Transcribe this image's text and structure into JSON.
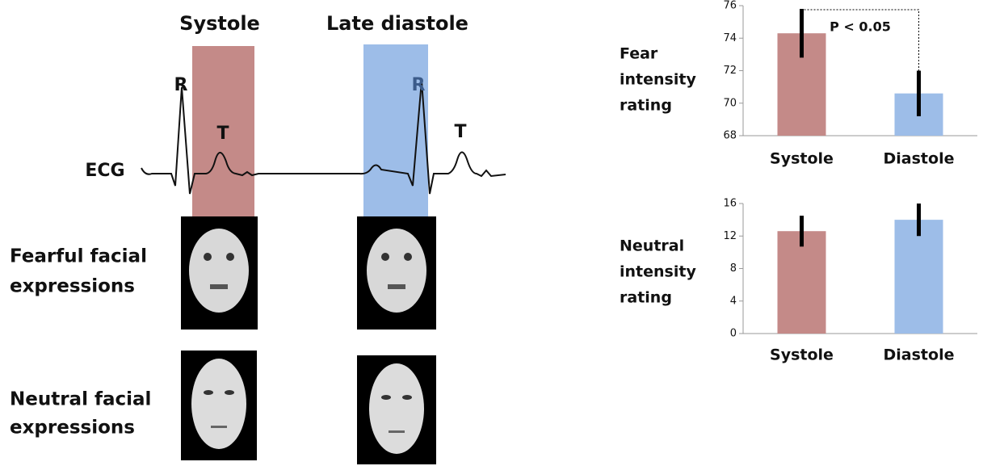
{
  "diagram": {
    "phases": [
      "Systole",
      "Late diastole"
    ],
    "ecg_label": "ECG",
    "wave_labels": [
      "R",
      "T",
      "R",
      "T"
    ],
    "rows": [
      [
        "Fearful facial",
        "expressions"
      ],
      [
        "Neutral facial",
        "expressions"
      ]
    ]
  },
  "chart_data": [
    {
      "type": "bar",
      "y_label": [
        "Fear",
        "intensity",
        "rating"
      ],
      "categories": [
        "Systole",
        "Diastole"
      ],
      "values": [
        74.3,
        70.6
      ],
      "errors": [
        1.5,
        1.4
      ],
      "colors": [
        "#c48a88",
        "#9dbde8"
      ],
      "ylim": [
        68,
        76
      ],
      "yticks": [
        68,
        70,
        72,
        74,
        76
      ],
      "annotation": "P < 0.05"
    },
    {
      "type": "bar",
      "y_label": [
        "Neutral",
        "intensity",
        "rating"
      ],
      "categories": [
        "Systole",
        "Diastole"
      ],
      "values": [
        12.6,
        14.0
      ],
      "errors": [
        1.9,
        2.0
      ],
      "colors": [
        "#c48a88",
        "#9dbde8"
      ],
      "ylim": [
        0,
        16
      ],
      "yticks": [
        0,
        4,
        8,
        12,
        16
      ]
    }
  ]
}
